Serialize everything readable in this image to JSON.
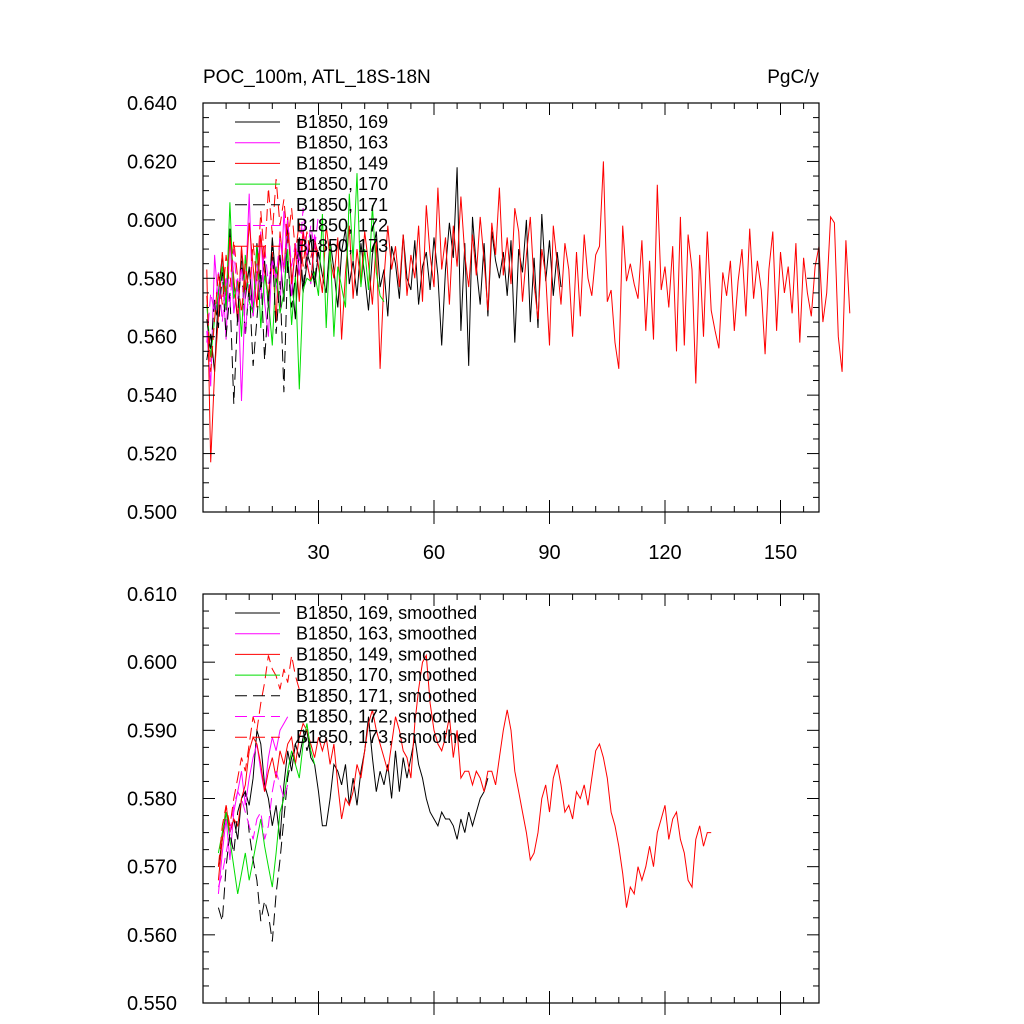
{
  "title": "POC_100m, ATL_18S-18N",
  "units": "PgC/y",
  "chart_data": [
    {
      "type": "line",
      "panel": "top",
      "xlim": [
        0,
        160
      ],
      "ylim": [
        0.5,
        0.64
      ],
      "x_ticks": [
        30,
        60,
        90,
        120,
        150
      ],
      "x_tick_labels": [
        "30",
        "60",
        "90",
        "120",
        "150"
      ],
      "y_ticks": [
        0.5,
        0.52,
        0.54,
        0.56,
        0.58,
        0.6,
        0.62,
        0.64
      ],
      "y_tick_labels": [
        "0.500",
        "0.520",
        "0.540",
        "0.560",
        "0.580",
        "0.600",
        "0.620",
        "0.640"
      ],
      "legend_position": "top-left",
      "series": [
        {
          "name": "B1850, 169",
          "color": "#000000",
          "dash": "solid",
          "x_start": 1,
          "values": [
            0.552,
            0.561,
            0.548,
            0.575,
            0.588,
            0.569,
            0.597,
            0.579,
            0.565,
            0.59,
            0.573,
            0.584,
            0.567,
            0.592,
            0.576,
            0.586,
            0.57,
            0.594,
            0.578,
            0.588,
            0.572,
            0.598,
            0.58,
            0.566,
            0.591,
            0.575,
            0.585,
            0.595,
            0.577,
            0.589,
            0.581,
            0.575,
            0.593,
            0.583,
            0.57,
            0.589,
            0.597,
            0.578,
            0.586,
            0.574,
            0.592,
            0.581,
            0.569,
            0.588,
            0.596,
            0.577,
            0.583,
            0.567,
            0.591,
            0.585,
            0.573,
            0.595,
            0.58,
            0.576,
            0.593,
            0.571,
            0.584,
            0.589,
            0.576,
            0.594,
            0.581,
            0.557,
            0.583,
            0.599,
            0.587,
            0.618,
            0.562,
            0.592,
            0.55,
            0.601,
            0.584,
            0.571,
            0.592,
            0.567,
            0.596,
            0.586,
            0.58,
            0.589,
            0.574,
            0.593,
            0.558,
            0.59,
            0.582,
            0.6,
            0.565,
            0.587,
            0.563,
            0.602,
            0.579,
            0.593,
            0.574,
            0.589,
            0.577
          ]
        },
        {
          "name": "B1850, 163",
          "color": "#ff00ff",
          "dash": "solid",
          "x_start": 1,
          "values": [
            0.562,
            0.543,
            0.588,
            0.571,
            0.583,
            0.559,
            0.594,
            0.568,
            0.58,
            0.538,
            0.575,
            0.609,
            0.567,
            0.581,
            0.596,
            0.572,
            0.56,
            0.588,
            0.578,
            0.569,
            0.603,
            0.585,
            0.574,
            0.592,
            0.581,
            0.597,
            0.586,
            0.578,
            0.595,
            0.584
          ]
        },
        {
          "name": "B1850, 149",
          "color": "#ff0000",
          "dash": "solid",
          "x_start": 1,
          "values": [
            0.583,
            0.517,
            0.548,
            0.567,
            0.589,
            0.574,
            0.594,
            0.58,
            0.566,
            0.591,
            0.576,
            0.599,
            0.584,
            0.57,
            0.595,
            0.582,
            0.574,
            0.589,
            0.565,
            0.596,
            0.583,
            0.601,
            0.578,
            0.59,
            0.572,
            0.596,
            0.585,
            0.579,
            0.592,
            0.584,
            0.575,
            0.598,
            0.587,
            0.58,
            0.594,
            0.559,
            0.582,
            0.598,
            0.573,
            0.59,
            0.578,
            0.596,
            0.585,
            0.571,
            0.593,
            0.549,
            0.58,
            0.598,
            0.583,
            0.591,
            0.577,
            0.595,
            0.574,
            0.588,
            0.58,
            0.598,
            0.572,
            0.605,
            0.588,
            0.577,
            0.611,
            0.583,
            0.594,
            0.571,
            0.598,
            0.584,
            0.608,
            0.588,
            0.577,
            0.595,
            0.581,
            0.601,
            0.586,
            0.569,
            0.599,
            0.588,
            0.611,
            0.581,
            0.594,
            0.578,
            0.604,
            0.596,
            0.572,
            0.588,
            0.601,
            0.578,
            0.566,
            0.59,
            0.581,
            0.557,
            0.598,
            0.585,
            0.571,
            0.592,
            0.583,
            0.56,
            0.589,
            0.567,
            0.595,
            0.58,
            0.574,
            0.588,
            0.591,
            0.62,
            0.572,
            0.576,
            0.558,
            0.549,
            0.598,
            0.579,
            0.585,
            0.578,
            0.573,
            0.593,
            0.562,
            0.586,
            0.559,
            0.612,
            0.576,
            0.584,
            0.57,
            0.591,
            0.555,
            0.601,
            0.557,
            0.595,
            0.583,
            0.544,
            0.588,
            0.56,
            0.596,
            0.569,
            0.562,
            0.556,
            0.582,
            0.574,
            0.586,
            0.562,
            0.579,
            0.59,
            0.567,
            0.597,
            0.573,
            0.586,
            0.576,
            0.554,
            0.583,
            0.596,
            0.562,
            0.589,
            0.575,
            0.584,
            0.568,
            0.592,
            0.558,
            0.587,
            0.575,
            0.567,
            0.584,
            0.591,
            0.565,
            0.575,
            0.601,
            0.599,
            0.56,
            0.548,
            0.593,
            0.568
          ]
        },
        {
          "name": "B1850, 170",
          "color": "#00dd00",
          "dash": "solid",
          "x_start": 1,
          "values": [
            0.571,
            0.553,
            0.566,
            0.575,
            0.584,
            0.57,
            0.606,
            0.573,
            0.579,
            0.56,
            0.588,
            0.572,
            0.568,
            0.591,
            0.563,
            0.581,
            0.573,
            0.557,
            0.584,
            0.568,
            0.575,
            0.59,
            0.564,
            0.581,
            0.542,
            0.576,
            0.58,
            0.579,
            0.582,
            0.574,
            0.602,
            0.563,
            0.592,
            0.56,
            0.584,
            0.577,
            0.57,
            0.609,
            0.586,
            0.616,
            0.577,
            0.59,
            0.576,
            0.605,
            0.582,
            0.574,
            0.572
          ]
        },
        {
          "name": "B1850, 171",
          "color": "#000000",
          "dash": "dash",
          "x_start": 1,
          "values": [
            0.566,
            0.555,
            0.573,
            0.563,
            0.582,
            0.56,
            0.575,
            0.537,
            0.568,
            0.586,
            0.56,
            0.578,
            0.55,
            0.566,
            0.583,
            0.552,
            0.572,
            0.592,
            0.561,
            0.579,
            0.541,
            0.586,
            0.57,
            0.581,
            0.594,
            0.577,
            0.589,
            0.584,
            0.578,
            0.592
          ]
        },
        {
          "name": "B1850, 172",
          "color": "#ff00ff",
          "dash": "dash",
          "x_start": 1,
          "values": [
            0.558,
            0.575,
            0.568,
            0.582,
            0.565,
            0.58,
            0.57,
            0.59,
            0.573,
            0.584,
            0.561,
            0.578,
            0.567,
            0.585,
            0.573,
            0.591,
            0.578,
            0.586,
            0.58,
            0.594,
            0.582,
            0.6,
            0.584,
            0.592,
            0.586,
            0.604,
            0.588,
            0.598,
            0.59,
            0.602
          ]
        },
        {
          "name": "B1850, 173",
          "color": "#ff0000",
          "dash": "dash",
          "x_start": 1,
          "values": [
            0.574,
            0.548,
            0.566,
            0.582,
            0.571,
            0.588,
            0.577,
            0.593,
            0.58,
            0.568,
            0.585,
            0.575,
            0.592,
            0.579,
            0.603,
            0.586,
            0.611,
            0.595,
            0.614,
            0.598,
            0.607,
            0.592,
            0.604,
            0.589,
            0.599,
            0.584,
            0.596,
            0.587,
            0.593,
            0.588
          ]
        }
      ]
    },
    {
      "type": "line",
      "panel": "bottom",
      "xlim": [
        0,
        160
      ],
      "ylim": [
        0.55,
        0.61
      ],
      "x_ticks": [
        30,
        60,
        90,
        120,
        150
      ],
      "x_tick_labels": [
        "",
        "",
        "",
        "",
        ""
      ],
      "y_ticks": [
        0.55,
        0.56,
        0.57,
        0.58,
        0.59,
        0.6,
        0.61
      ],
      "y_tick_labels": [
        "0.550",
        "0.560",
        "0.570",
        "0.580",
        "0.590",
        "0.600",
        "0.610"
      ],
      "legend_position": "top-left",
      "series": [
        {
          "name": "B1850, 169, smoothed",
          "color": "#000000",
          "dash": "solid",
          "x_start": 4,
          "values": [
            0.57,
            0.574,
            0.578,
            0.575,
            0.577,
            0.574,
            0.58,
            0.581,
            0.579,
            0.583,
            0.59,
            0.588,
            0.582,
            0.58,
            0.576,
            0.579,
            0.574,
            0.582,
            0.587,
            0.584,
            0.588,
            0.586,
            0.589,
            0.59,
            0.586,
            0.585,
            0.581,
            0.576,
            0.576,
            0.58,
            0.585,
            0.584,
            0.582,
            0.585,
            0.579,
            0.583,
            0.579,
            0.584,
            0.587,
            0.592,
            0.586,
            0.581,
            0.584,
            0.582,
            0.585,
            0.58,
            0.587,
            0.581,
            0.586,
            0.583,
            0.586,
            0.589,
            0.585,
            0.583,
            0.58,
            0.578,
            0.577,
            0.576,
            0.578,
            0.577,
            0.577,
            0.576,
            0.574,
            0.577,
            0.575,
            0.578,
            0.576,
            0.578,
            0.58,
            0.581,
            0.583
          ]
        },
        {
          "name": "B1850, 163, smoothed",
          "color": "#ff00ff",
          "dash": "solid",
          "x_start": 4,
          "values": [
            0.566,
            0.572,
            0.577,
            0.571,
            0.578,
            0.581,
            0.584,
            0.579,
            0.583,
            0.586,
            0.588,
            0.584,
            0.581,
            0.586,
            0.589,
            0.587,
            0.59,
            0.591,
            0.592
          ]
        },
        {
          "name": "B1850, 149, smoothed",
          "color": "#ff0000",
          "dash": "solid",
          "x_start": 4,
          "values": [
            0.568,
            0.574,
            0.579,
            0.575,
            0.577,
            0.576,
            0.58,
            0.582,
            0.587,
            0.589,
            0.588,
            0.585,
            0.581,
            0.584,
            0.586,
            0.583,
            0.587,
            0.585,
            0.588,
            0.589,
            0.585,
            0.589,
            0.591,
            0.59,
            0.588,
            0.586,
            0.589,
            0.587,
            0.589,
            0.585,
            0.588,
            0.582,
            0.577,
            0.58,
            0.579,
            0.581,
            0.585,
            0.583,
            0.587,
            0.591,
            0.593,
            0.59,
            0.588,
            0.586,
            0.584,
            0.588,
            0.592,
            0.59,
            0.587,
            0.586,
            0.583,
            0.591,
            0.596,
            0.6,
            0.601,
            0.594,
            0.59,
            0.588,
            0.587,
            0.589,
            0.592,
            0.586,
            0.59,
            0.583,
            0.584,
            0.584,
            0.582,
            0.584,
            0.583,
            0.581,
            0.584,
            0.584,
            0.582,
            0.586,
            0.59,
            0.593,
            0.59,
            0.584,
            0.581,
            0.578,
            0.575,
            0.571,
            0.572,
            0.575,
            0.58,
            0.582,
            0.578,
            0.583,
            0.585,
            0.582,
            0.578,
            0.579,
            0.577,
            0.581,
            0.58,
            0.582,
            0.579,
            0.583,
            0.587,
            0.588,
            0.586,
            0.583,
            0.578,
            0.576,
            0.573,
            0.569,
            0.564,
            0.567,
            0.566,
            0.57,
            0.568,
            0.57,
            0.573,
            0.57,
            0.575,
            0.577,
            0.579,
            0.574,
            0.577,
            0.578,
            0.574,
            0.572,
            0.568,
            0.567,
            0.574,
            0.576,
            0.573,
            0.575,
            0.575
          ]
        },
        {
          "name": "B1850, 170, smoothed",
          "color": "#00dd00",
          "dash": "solid",
          "x_start": 4,
          "values": [
            0.572,
            0.575,
            0.578,
            0.574,
            0.57,
            0.566,
            0.569,
            0.572,
            0.568,
            0.571,
            0.574,
            0.577,
            0.573,
            0.57,
            0.567,
            0.572,
            0.578,
            0.58,
            0.584,
            0.587,
            0.585,
            0.583,
            0.588,
            0.591,
            0.587,
            0.585
          ]
        },
        {
          "name": "B1850, 171, smoothed",
          "color": "#000000",
          "dash": "dash",
          "x_start": 4,
          "values": [
            0.564,
            0.562,
            0.57,
            0.575,
            0.572,
            0.578,
            0.58,
            0.581,
            0.575,
            0.571,
            0.568,
            0.562,
            0.565,
            0.563,
            0.559,
            0.566,
            0.571,
            0.577,
            0.583,
            0.586,
            0.588,
            0.589,
            0.59,
            0.587,
            0.589
          ]
        },
        {
          "name": "B1850, 172, smoothed",
          "color": "#ff00ff",
          "dash": "dash",
          "x_start": 4,
          "values": [
            0.567,
            0.569,
            0.572,
            0.575,
            0.579,
            0.581,
            0.58,
            0.578,
            0.576,
            0.574,
            0.577,
            0.578,
            0.574,
            0.576,
            0.581,
            0.584,
            0.582,
            0.58,
            0.582
          ]
        },
        {
          "name": "B1850, 173, smoothed",
          "color": "#ff0000",
          "dash": "dash",
          "x_start": 4,
          "values": [
            0.57,
            0.576,
            0.579,
            0.576,
            0.58,
            0.583,
            0.586,
            0.584,
            0.588,
            0.592,
            0.59,
            0.594,
            0.597,
            0.601,
            0.599,
            0.598,
            0.596,
            0.599,
            0.597,
            0.601,
            0.598,
            0.596
          ]
        }
      ]
    }
  ]
}
